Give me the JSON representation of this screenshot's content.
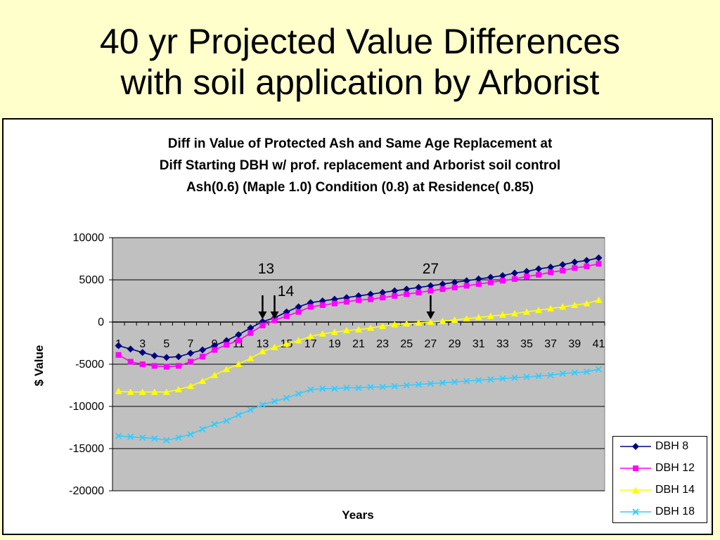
{
  "slide": {
    "title_lines": [
      "40 yr Projected Value Differences",
      "with soil application by Arborist"
    ]
  },
  "colors": {
    "background": "#ffffcc",
    "plot_area": "#c0c0c0",
    "DBH 8": "#000080",
    "DBH 12": "#ff00ff",
    "DBH 14": "#ffff00",
    "DBH 18": "#33ccff"
  },
  "chart_data": {
    "type": "line",
    "title_lines": [
      "Diff in Value of Protected Ash and Same Age Replacement at",
      "Diff Starting DBH  w/ prof. replacement and Arborist soil control",
      "Ash(0.6) (Maple 1.0)  Condition (0.8) at Residence( 0.85)"
    ],
    "xlabel": "Years",
    "ylabel": "$ Value",
    "ylim": [
      -20000,
      10000
    ],
    "y_ticks": [
      10000,
      5000,
      0,
      -5000,
      -10000,
      -15000,
      -20000
    ],
    "x": [
      1,
      2,
      3,
      4,
      5,
      6,
      7,
      8,
      9,
      10,
      11,
      12,
      13,
      14,
      15,
      16,
      17,
      18,
      19,
      20,
      21,
      22,
      23,
      24,
      25,
      26,
      27,
      28,
      29,
      30,
      31,
      32,
      33,
      34,
      35,
      36,
      37,
      38,
      39,
      40,
      41
    ],
    "x_tick_labels": [
      "1",
      "3",
      "5",
      "7",
      "9",
      "11",
      "13",
      "15",
      "17",
      "19",
      "21",
      "23",
      "25",
      "27",
      "29",
      "31",
      "33",
      "35",
      "37",
      "39",
      "41"
    ],
    "grid": "horizontal",
    "legend_position": "right",
    "series": [
      {
        "name": "DBH 8",
        "marker": "diamond",
        "values": [
          -2800,
          -3200,
          -3600,
          -4000,
          -4200,
          -4100,
          -3700,
          -3300,
          -2800,
          -2200,
          -1500,
          -700,
          50,
          500,
          1200,
          1800,
          2300,
          2500,
          2700,
          2900,
          3100,
          3300,
          3500,
          3700,
          3900,
          4100,
          4300,
          4500,
          4700,
          4900,
          5100,
          5300,
          5500,
          5800,
          6000,
          6300,
          6500,
          6800,
          7100,
          7300,
          7600
        ]
      },
      {
        "name": "DBH 12",
        "marker": "square",
        "values": [
          -3900,
          -4700,
          -5000,
          -5200,
          -5300,
          -5200,
          -4700,
          -4100,
          -3300,
          -2700,
          -2200,
          -1300,
          -400,
          200,
          700,
          1200,
          1800,
          2000,
          2200,
          2400,
          2600,
          2700,
          2900,
          3100,
          3300,
          3500,
          3700,
          3900,
          4100,
          4300,
          4500,
          4700,
          4900,
          5100,
          5400,
          5600,
          5900,
          6100,
          6400,
          6600,
          6900
        ]
      },
      {
        "name": "DBH 14",
        "marker": "triangle",
        "values": [
          -8200,
          -8300,
          -8300,
          -8300,
          -8300,
          -8000,
          -7600,
          -7000,
          -6300,
          -5600,
          -5000,
          -4300,
          -3500,
          -3000,
          -2600,
          -2200,
          -1700,
          -1400,
          -1200,
          -1000,
          -900,
          -700,
          -500,
          -300,
          -200,
          -100,
          0,
          100,
          250,
          400,
          550,
          700,
          850,
          1000,
          1200,
          1400,
          1600,
          1800,
          2000,
          2200,
          2600
        ]
      },
      {
        "name": "DBH 18",
        "marker": "x",
        "values": [
          -13500,
          -13600,
          -13700,
          -13800,
          -14000,
          -13700,
          -13300,
          -12700,
          -12100,
          -11700,
          -11000,
          -10400,
          -9800,
          -9400,
          -9000,
          -8500,
          -8000,
          -7900,
          -7900,
          -7800,
          -7800,
          -7700,
          -7700,
          -7600,
          -7500,
          -7400,
          -7300,
          -7200,
          -7100,
          -7000,
          -6900,
          -6800,
          -6700,
          -6600,
          -6500,
          -6400,
          -6300,
          -6100,
          -6000,
          -5900,
          -5600
        ]
      }
    ],
    "annotations": [
      {
        "label": "13",
        "x": 13
      },
      {
        "label": "14",
        "x": 14
      },
      {
        "label": "27",
        "x": 27
      }
    ]
  }
}
